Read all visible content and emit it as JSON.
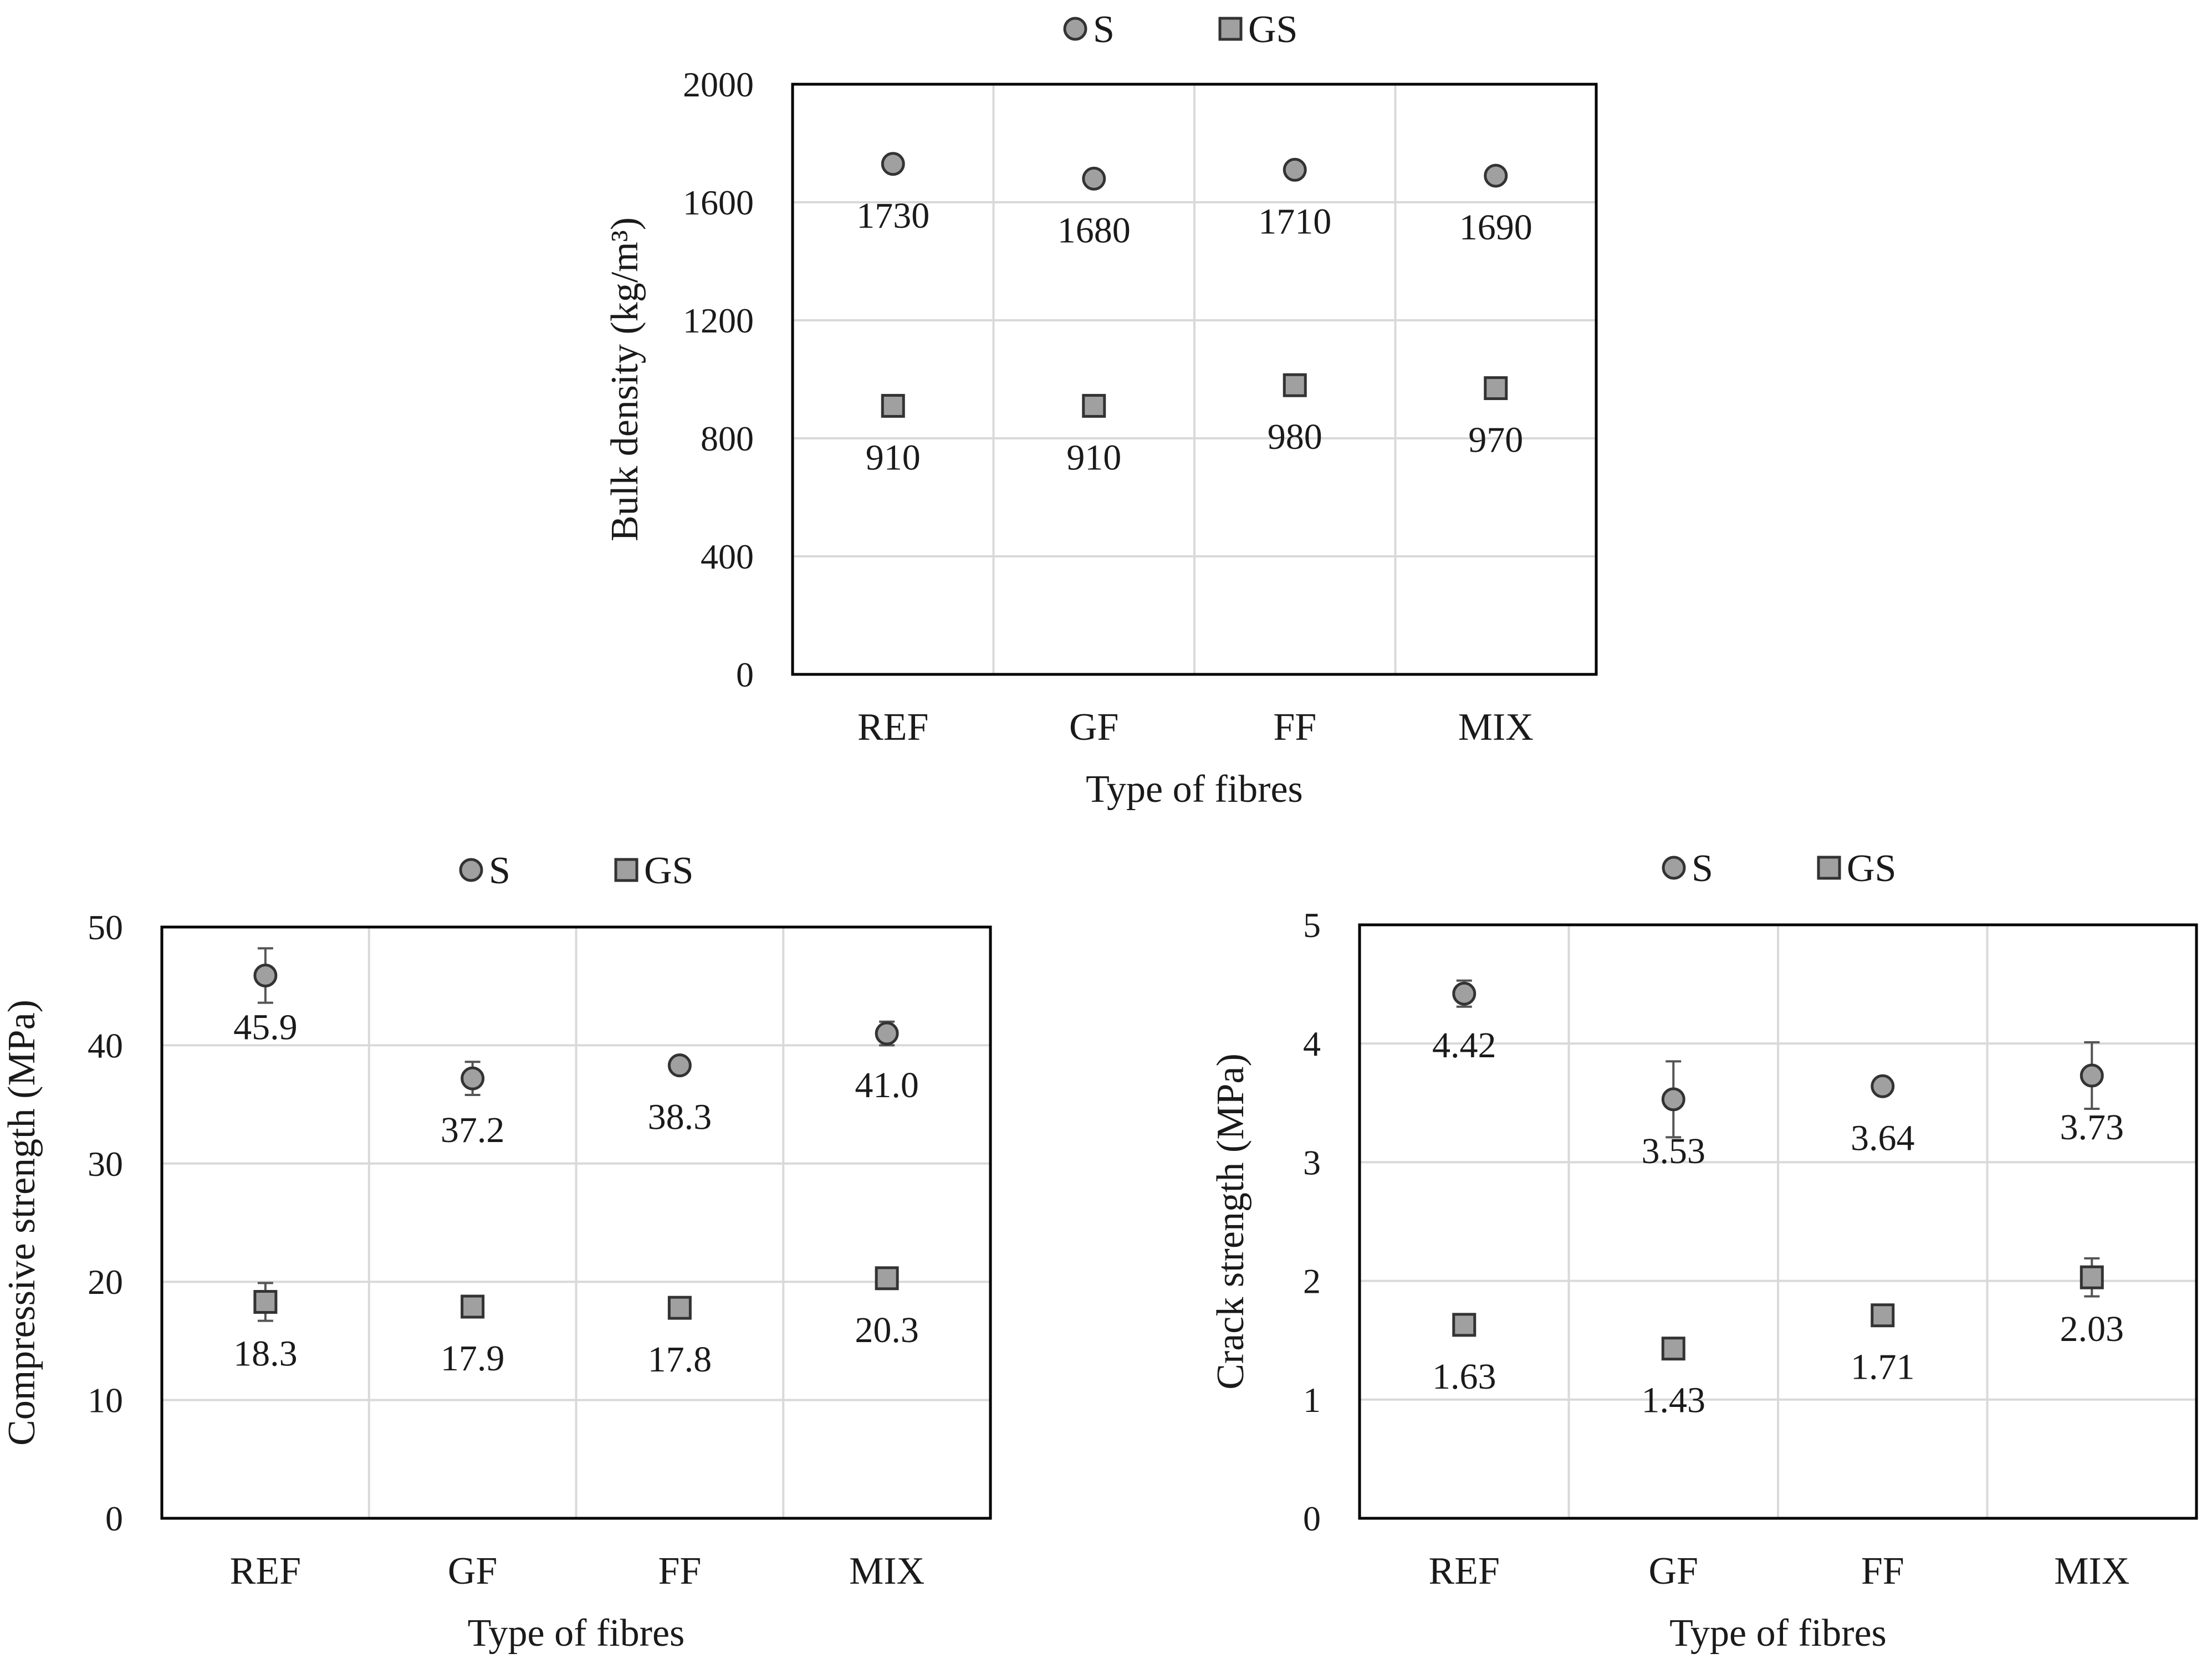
{
  "chart_data": [
    {
      "id": "bulk-density",
      "type": "scatter",
      "title": "",
      "xlabel": "Type of fibres",
      "ylabel": "Bulk density (kg/m³)",
      "categories": [
        "REF",
        "GF",
        "FF",
        "MIX"
      ],
      "ylim": [
        0,
        2000
      ],
      "yticks": [
        0,
        400,
        800,
        1200,
        1600,
        2000
      ],
      "ytick_labels": [
        "0",
        "400",
        "800",
        "1200",
        "1600",
        "2000"
      ],
      "grid": true,
      "legend_position": "top",
      "series": [
        {
          "name": "S",
          "marker": "circle",
          "values": [
            1730,
            1680,
            1710,
            1690
          ],
          "labels": [
            "1730",
            "1680",
            "1710",
            "1690"
          ],
          "errors": [
            0,
            0,
            0,
            0
          ]
        },
        {
          "name": "GS",
          "marker": "square",
          "values": [
            910,
            910,
            980,
            970
          ],
          "labels": [
            "910",
            "910",
            "980",
            "970"
          ],
          "errors": [
            0,
            0,
            0,
            0
          ]
        }
      ]
    },
    {
      "id": "compressive-strength",
      "type": "scatter",
      "title": "",
      "xlabel": "Type of fibres",
      "ylabel": "Compressive strength (MPa)",
      "categories": [
        "REF",
        "GF",
        "FF",
        "MIX"
      ],
      "ylim": [
        0,
        50
      ],
      "yticks": [
        0,
        10,
        20,
        30,
        40,
        50
      ],
      "ytick_labels": [
        "0",
        "10",
        "20",
        "30",
        "40",
        "50"
      ],
      "grid": true,
      "legend_position": "top",
      "series": [
        {
          "name": "S",
          "marker": "circle",
          "values": [
            45.9,
            37.2,
            38.3,
            41.0
          ],
          "labels": [
            "45.9",
            "37.2",
            "38.3",
            "41.0"
          ],
          "errors": [
            2.3,
            1.4,
            0.5,
            1.0
          ]
        },
        {
          "name": "GS",
          "marker": "square",
          "values": [
            18.3,
            17.9,
            17.8,
            20.3
          ],
          "labels": [
            "18.3",
            "17.9",
            "17.8",
            "20.3"
          ],
          "errors": [
            1.6,
            0.6,
            0.5,
            0.7
          ]
        }
      ]
    },
    {
      "id": "crack-strength",
      "type": "scatter",
      "title": "",
      "xlabel": "Type of fibres",
      "ylabel": "Crack strength (MPa)",
      "categories": [
        "REF",
        "GF",
        "FF",
        "MIX"
      ],
      "ylim": [
        0,
        5
      ],
      "yticks": [
        0,
        1,
        2,
        3,
        4,
        5
      ],
      "ytick_labels": [
        "0",
        "1",
        "2",
        "3",
        "4",
        "5"
      ],
      "grid": true,
      "legend_position": "top",
      "series": [
        {
          "name": "S",
          "marker": "circle",
          "values": [
            4.42,
            3.53,
            3.64,
            3.73
          ],
          "labels": [
            "4.42",
            "3.53",
            "3.64",
            "3.73"
          ],
          "errors": [
            0.11,
            0.32,
            0.06,
            0.28
          ]
        },
        {
          "name": "GS",
          "marker": "square",
          "values": [
            1.63,
            1.43,
            1.71,
            2.03
          ],
          "labels": [
            "1.63",
            "1.43",
            "1.71",
            "2.03"
          ],
          "errors": [
            0.04,
            0.05,
            0.04,
            0.16
          ]
        }
      ]
    }
  ]
}
